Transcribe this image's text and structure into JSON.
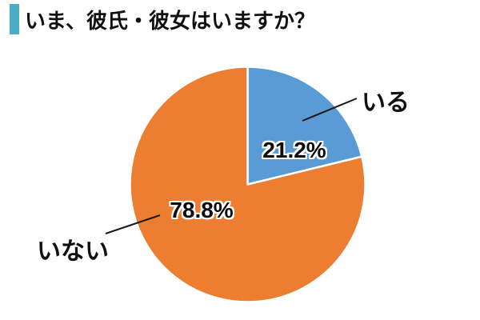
{
  "header": {
    "title": "いま、彼氏・彼女はいますか？",
    "accent_color": "#4BACC6"
  },
  "chart_data": {
    "type": "pie",
    "title": "いま、彼氏・彼女はいますか？",
    "labels": [
      "いる",
      "いない"
    ],
    "values": [
      21.2,
      78.8
    ],
    "value_labels": [
      "21.2%",
      "78.8%"
    ],
    "colors": [
      "#5B9BD5",
      "#ED7D31"
    ],
    "slice_border_color": "#FFFFFF",
    "start_angle_deg": -90,
    "direction": "clockwise",
    "legend_position": "none",
    "leader_line_color": "#1A1A1A"
  }
}
